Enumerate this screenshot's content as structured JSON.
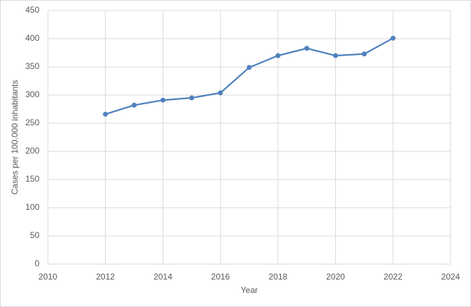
{
  "chart_data": {
    "type": "line",
    "xlabel": "Year",
    "ylabel": "Cases per 100.000 inhabitants",
    "x": [
      2012,
      2013,
      2014,
      2015,
      2016,
      2017,
      2018,
      2019,
      2020,
      2021,
      2022
    ],
    "series": [
      {
        "color": "#4f81bd",
        "values": [
          266,
          282,
          291,
          295,
          304,
          349,
          370,
          383,
          370,
          373,
          401
        ]
      }
    ],
    "xlim": [
      2010,
      2024
    ],
    "xticks": [
      2010,
      2012,
      2014,
      2016,
      2018,
      2020,
      2022,
      2024
    ],
    "ylim": [
      0,
      450
    ],
    "yticks": [
      0,
      50,
      100,
      150,
      200,
      250,
      300,
      350,
      400,
      450
    ],
    "grid": true
  }
}
